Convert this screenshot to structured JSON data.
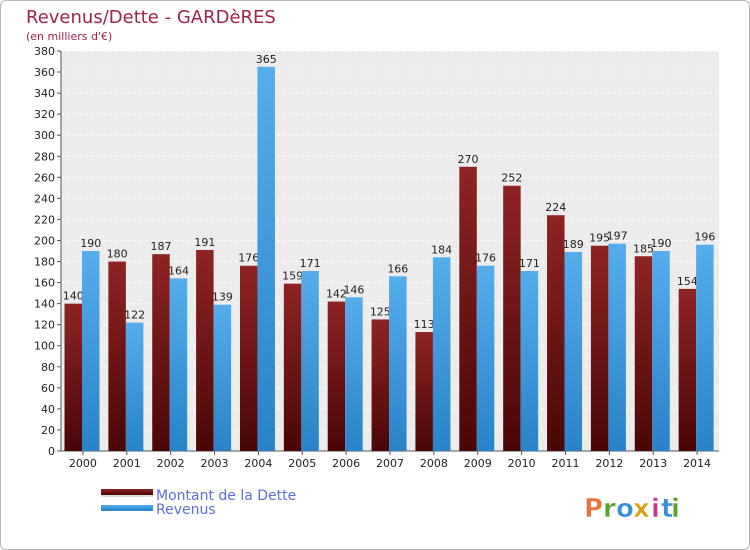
{
  "chart_data": {
    "type": "bar",
    "title": "Revenus/Dette - GARDèRES",
    "subtitle": "(en milliers d'€)",
    "categories": [
      "2000",
      "2001",
      "2002",
      "2003",
      "2004",
      "2005",
      "2006",
      "2007",
      "2008",
      "2009",
      "2010",
      "2011",
      "2012",
      "2013",
      "2014"
    ],
    "series": [
      {
        "name": "Montant de la Dette",
        "color": "#7a1a1a",
        "values": [
          140,
          180,
          187,
          191,
          176,
          159,
          142,
          125,
          113,
          270,
          252,
          224,
          195,
          185,
          154
        ]
      },
      {
        "name": "Revenus",
        "color": "#3d9be0",
        "values": [
          190,
          122,
          164,
          139,
          365,
          171,
          146,
          166,
          184,
          176,
          171,
          189,
          197,
          190,
          196
        ]
      }
    ],
    "ylim": [
      0,
      380
    ],
    "ytick_step": 20,
    "grid": true,
    "legend_position": "bottom-left"
  },
  "brand": {
    "letters": [
      "P",
      "r",
      "o",
      "x",
      "i",
      "t",
      "i"
    ],
    "colors": [
      "#e8743b",
      "#5aa02c",
      "#3a8ede",
      "#d8a017",
      "#c03b8a",
      "#3a8ede",
      "#5aa02c"
    ]
  }
}
